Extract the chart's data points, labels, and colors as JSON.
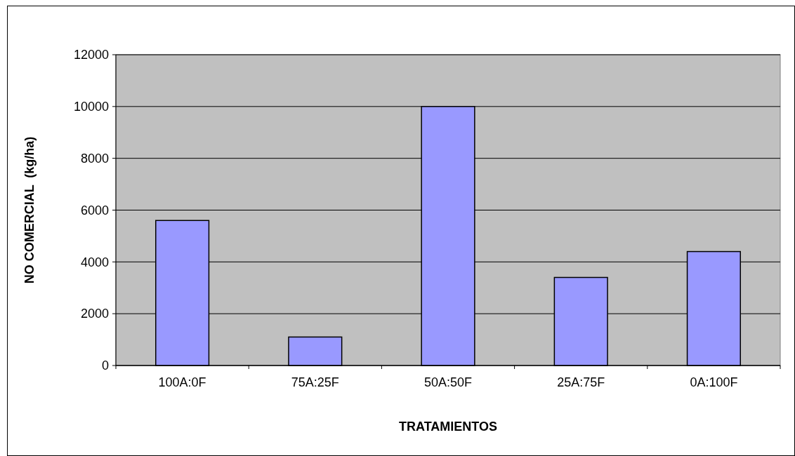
{
  "chart_data": {
    "type": "bar",
    "xlabel": "TRATAMIENTOS",
    "ylabel": "NO COMERCIAL  (kg/ha)",
    "categories": [
      "100A:0F",
      "75A:25F",
      "50A:50F",
      "25A:75F",
      "0A:100F"
    ],
    "values": [
      5600,
      1100,
      10000,
      3400,
      4400
    ],
    "color": "#9999ff",
    "ylim": [
      0,
      12000
    ],
    "yticks": [
      0,
      2000,
      4000,
      6000,
      8000,
      10000,
      12000
    ],
    "grid": "y"
  }
}
